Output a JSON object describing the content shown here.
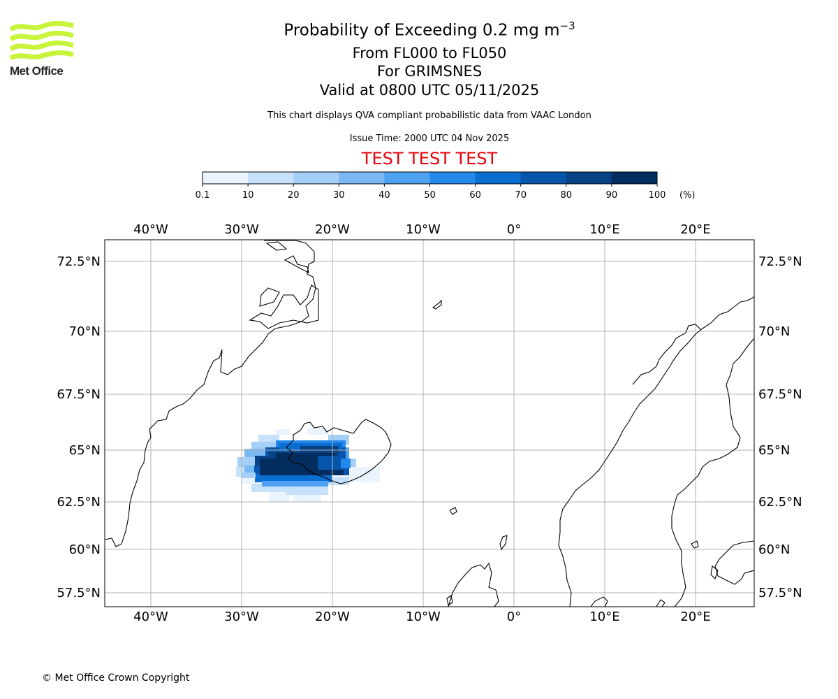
{
  "logo": {
    "icon": "met-office-waves-icon",
    "text": "Met Office",
    "color": "#c8f53c"
  },
  "header": {
    "title_main": "Probability of Exceeding 0.2 mg m",
    "title_exponent": "−3",
    "flight_levels": "From FL000 to FL050",
    "location": "For GRIMSNES",
    "valid": "Valid at 0800 UTC 05/11/2025",
    "subtitle": "This chart displays QVA compliant probabilistic data from VAAC London",
    "issue_time": "Issue Time: 2000 UTC 04 Nov 2025",
    "test_banner": "TEST TEST TEST",
    "test_color": "#e8000b"
  },
  "colorbar": {
    "ticks": [
      "0.1",
      "10",
      "20",
      "30",
      "40",
      "50",
      "60",
      "70",
      "80",
      "90",
      "100"
    ],
    "unit": "(%)",
    "colors": [
      "#eaf4ff",
      "#c6e2fb",
      "#a3cff8",
      "#7ab9f4",
      "#4da2f1",
      "#2288ea",
      "#0a6dd0",
      "#0556ab",
      "#064284",
      "#022d5e"
    ]
  },
  "map": {
    "lon_labels": [
      "40°W",
      "30°W",
      "20°W",
      "10°W",
      "0°",
      "10°E",
      "20°E"
    ],
    "lat_labels": [
      "72.5°N",
      "70°N",
      "67.5°N",
      "65°N",
      "62.5°N",
      "60°N",
      "57.5°N"
    ],
    "lon_range": [
      -45,
      26.5
    ],
    "lat_range": [
      57,
      73.5
    ],
    "plume_center": "Iceland (Grimsnes)"
  },
  "footer": {
    "copyright": "© Met Office Crown Copyright"
  }
}
